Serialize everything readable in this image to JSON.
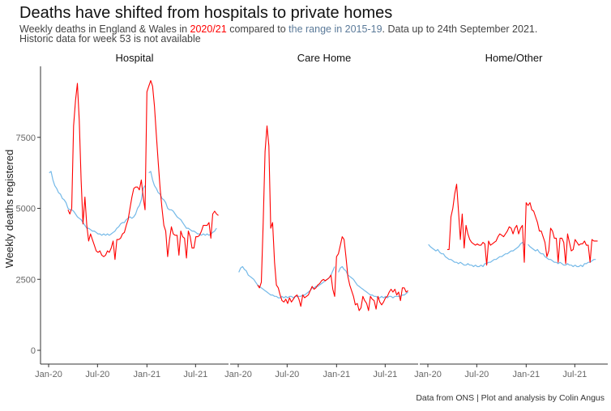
{
  "chart_data": {
    "type": "line",
    "title": "Deaths have shifted from hospitals to private homes",
    "subtitle": {
      "line1_parts": [
        "Weekly deaths in England & Wales in ",
        "2020/21",
        " compared to ",
        "the range in 2015-19",
        ". Data up to 24th September 2021."
      ],
      "line2": "Historic data for week 53 is not available"
    },
    "ylabel": "Weekly deaths registered",
    "ylim": [
      0,
      10000
    ],
    "yticks": [
      0,
      2500,
      5000,
      7500
    ],
    "xticks": [
      {
        "date": "2020-01-01",
        "label": "Jan-20"
      },
      {
        "date": "2020-07-01",
        "label": "Jul-20"
      },
      {
        "date": "2021-01-01",
        "label": "Jan-21"
      },
      {
        "date": "2021-07-01",
        "label": "Jul-21"
      }
    ],
    "grid": false,
    "colors": {
      "current": "#ff0000",
      "historic": "#74b9e8",
      "highlight_range": "#5b7a99"
    },
    "caption": "Data from ONS | Plot and analysis by Colin Angus",
    "week_ending": [
      "2020-01-03",
      "2020-01-10",
      "2020-01-17",
      "2020-01-24",
      "2020-01-31",
      "2020-02-07",
      "2020-02-14",
      "2020-02-21",
      "2020-02-28",
      "2020-03-06",
      "2020-03-13",
      "2020-03-20",
      "2020-03-27",
      "2020-04-03",
      "2020-04-10",
      "2020-04-17",
      "2020-04-24",
      "2020-05-01",
      "2020-05-08",
      "2020-05-15",
      "2020-05-22",
      "2020-05-29",
      "2020-06-05",
      "2020-06-12",
      "2020-06-19",
      "2020-06-26",
      "2020-07-03",
      "2020-07-10",
      "2020-07-17",
      "2020-07-24",
      "2020-07-31",
      "2020-08-07",
      "2020-08-14",
      "2020-08-21",
      "2020-08-28",
      "2020-09-04",
      "2020-09-11",
      "2020-09-18",
      "2020-09-25",
      "2020-10-02",
      "2020-10-09",
      "2020-10-16",
      "2020-10-23",
      "2020-10-30",
      "2020-11-06",
      "2020-11-13",
      "2020-11-20",
      "2020-11-27",
      "2020-12-04",
      "2020-12-11",
      "2020-12-18",
      "2020-12-25",
      "2021-01-01",
      "2021-01-08",
      "2021-01-15",
      "2021-01-22",
      "2021-01-29",
      "2021-02-05",
      "2021-02-12",
      "2021-02-19",
      "2021-02-26",
      "2021-03-05",
      "2021-03-12",
      "2021-03-19",
      "2021-03-26",
      "2021-04-02",
      "2021-04-09",
      "2021-04-16",
      "2021-04-23",
      "2021-04-30",
      "2021-05-07",
      "2021-05-14",
      "2021-05-21",
      "2021-05-28",
      "2021-06-04",
      "2021-06-11",
      "2021-06-18",
      "2021-06-25",
      "2021-07-02",
      "2021-07-09",
      "2021-07-16",
      "2021-07-23",
      "2021-07-30",
      "2021-08-06",
      "2021-08-13",
      "2021-08-20",
      "2021-08-27",
      "2021-09-03",
      "2021-09-10",
      "2021-09-17",
      "2021-09-24"
    ],
    "panels": [
      {
        "name": "Hospital",
        "series": [
          {
            "key": "historic",
            "values": [
              6250,
              6300,
              6000,
              5800,
              5700,
              5550,
              5500,
              5350,
              5300,
              5200,
              5000,
              4950,
              4950,
              4900,
              4800,
              4700,
              4650,
              4600,
              4500,
              4400,
              4300,
              4300,
              4250,
              4200,
              4200,
              4150,
              4100,
              4100,
              4050,
              4100,
              4050,
              4100,
              4050,
              4100,
              4150,
              4200,
              4300,
              4350,
              4450,
              4500,
              4500,
              4600,
              4650,
              4700,
              4650,
              4700,
              4800,
              5000,
              5100,
              5300,
              5700,
              5800,
              null,
              6250,
              6300,
              6000,
              5800,
              5700,
              5550,
              5500,
              5350,
              5300,
              5200,
              5000,
              4950,
              4950,
              4900,
              4800,
              4700,
              4650,
              4600,
              4500,
              4400,
              4300,
              4300,
              4250,
              4200,
              4200,
              4150,
              4100,
              4100,
              4050,
              4100,
              4050,
              4100,
              4050,
              4100,
              4150,
              4200,
              4300
            ]
          },
          {
            "key": "current",
            "values": [
              null,
              null,
              null,
              null,
              null,
              null,
              null,
              null,
              null,
              null,
              4950,
              4800,
              5000,
              7900,
              8800,
              9400,
              8100,
              6000,
              4450,
              5400,
              4400,
              3850,
              4100,
              3900,
              3700,
              3500,
              3450,
              3500,
              3350,
              3300,
              3350,
              3500,
              3450,
              3600,
              3850,
              3200,
              3900,
              3900,
              3950,
              4100,
              4150,
              4400,
              4600,
              5000,
              5400,
              5700,
              5750,
              5750,
              5650,
              6000,
              5400,
              4950,
              9100,
              9300,
              9500,
              9300,
              8600,
              7600,
              6600,
              5700,
              5000,
              4400,
              4200,
              3300,
              3900,
              4350,
              4100,
              4050,
              4050,
              3350,
              4200,
              4000,
              3950,
              3250,
              4200,
              4000,
              3600,
              3600,
              4000,
              4000,
              4050,
              4200,
              4400,
              4400,
              4400,
              4500,
              3950,
              4800,
              4900,
              4800,
              4750
            ]
          }
        ]
      },
      {
        "name": "Care Home",
        "series": [
          {
            "key": "historic",
            "values": [
              2750,
              2900,
              2950,
              2850,
              2800,
              2650,
              2600,
              2550,
              2500,
              2400,
              2300,
              2250,
              2200,
              2150,
              2100,
              2050,
              2000,
              1950,
              1950,
              1900,
              1900,
              1850,
              1850,
              1900,
              1850,
              1900,
              1850,
              1900,
              1900,
              1850,
              1900,
              1900,
              1900,
              1900,
              1950,
              1950,
              2000,
              2050,
              2100,
              2200,
              2200,
              2250,
              2250,
              2300,
              2350,
              2400,
              2450,
              2500,
              2550,
              2650,
              2800,
              2950,
              null,
              2750,
              2900,
              2950,
              2850,
              2800,
              2650,
              2600,
              2550,
              2500,
              2400,
              2300,
              2250,
              2200,
              2150,
              2100,
              2050,
              2000,
              1950,
              1950,
              1900,
              1900,
              1850,
              1850,
              1900,
              1850,
              1900,
              1850,
              1900,
              1900,
              1850,
              1900,
              1900,
              1900,
              1900,
              1950,
              1950,
              2000,
              2050
            ]
          },
          {
            "key": "current",
            "values": [
              null,
              null,
              null,
              null,
              null,
              null,
              null,
              null,
              null,
              null,
              2300,
              2200,
              2400,
              4500,
              7000,
              7900,
              7200,
              4300,
              4500,
              3100,
              2300,
              2200,
              1950,
              1750,
              1700,
              1800,
              1650,
              1850,
              1700,
              1800,
              1900,
              1950,
              1800,
              1550,
              1950,
              1850,
              1900,
              1950,
              2100,
              2250,
              2150,
              2200,
              2300,
              2350,
              2450,
              2500,
              2450,
              2500,
              2550,
              2650,
              2150,
              1900,
              3300,
              3400,
              3700,
              4000,
              3900,
              3300,
              2600,
              2300,
              2100,
              1900,
              1600,
              1650,
              1400,
              1500,
              1900,
              1750,
              1650,
              1400,
              1900,
              1800,
              1750,
              1450,
              1900,
              1700,
              1600,
              1700,
              1850,
              1900,
              2050,
              2150,
              2050,
              2150,
              1950,
              2050,
              1750,
              2200,
              2200,
              2050,
              2100
            ]
          }
        ]
      },
      {
        "name": "Home/Other",
        "series": [
          {
            "key": "historic",
            "values": [
              3730,
              3650,
              3600,
              3550,
              3500,
              3550,
              3450,
              3400,
              3400,
              3300,
              3250,
              3200,
              3200,
              3150,
              3100,
              3100,
              3050,
              3100,
              3050,
              3000,
              3000,
              3050,
              3000,
              3000,
              2950,
              3000,
              2950,
              2950,
              3000,
              2950,
              3050,
              3050,
              3100,
              3100,
              3150,
              3200,
              3200,
              3250,
              3300,
              3300,
              3350,
              3400,
              3400,
              3450,
              3500,
              3500,
              3550,
              3600,
              3650,
              3750,
              3800,
              3700,
              null,
              3730,
              3650,
              3600,
              3550,
              3500,
              3550,
              3450,
              3400,
              3400,
              3300,
              3250,
              3200,
              3200,
              3150,
              3100,
              3100,
              3050,
              3100,
              3050,
              3000,
              3000,
              3050,
              3000,
              3000,
              2950,
              3000,
              2950,
              2950,
              3000,
              2950,
              3050,
              3050,
              3100,
              3100,
              3150,
              3200,
              3200
            ]
          },
          {
            "key": "current",
            "values": [
              null,
              null,
              null,
              null,
              null,
              null,
              null,
              null,
              null,
              null,
              3550,
              3550,
              4700,
              5000,
              5500,
              5850,
              4900,
              3900,
              4800,
              3600,
              4400,
              4100,
              3900,
              3800,
              3750,
              3700,
              3750,
              3700,
              3700,
              3800,
              3750,
              3000,
              3850,
              3700,
              3750,
              3800,
              3850,
              4000,
              4100,
              4050,
              4000,
              4100,
              4200,
              4350,
              4300,
              4100,
              4300,
              4400,
              4100,
              4300,
              4400,
              3100,
              5200,
              5100,
              5200,
              4950,
              4900,
              4700,
              4500,
              4200,
              4200,
              4000,
              3800,
              3300,
              3500,
              4300,
              4200,
              3950,
              3950,
              3100,
              3950,
              3950,
              3800,
              3050,
              4100,
              3800,
              3500,
              3550,
              3900,
              3800,
              3700,
              3750,
              3750,
              3850,
              3700,
              3700,
              3100,
              3900,
              3850,
              3850,
              3850
            ]
          }
        ]
      }
    ]
  }
}
